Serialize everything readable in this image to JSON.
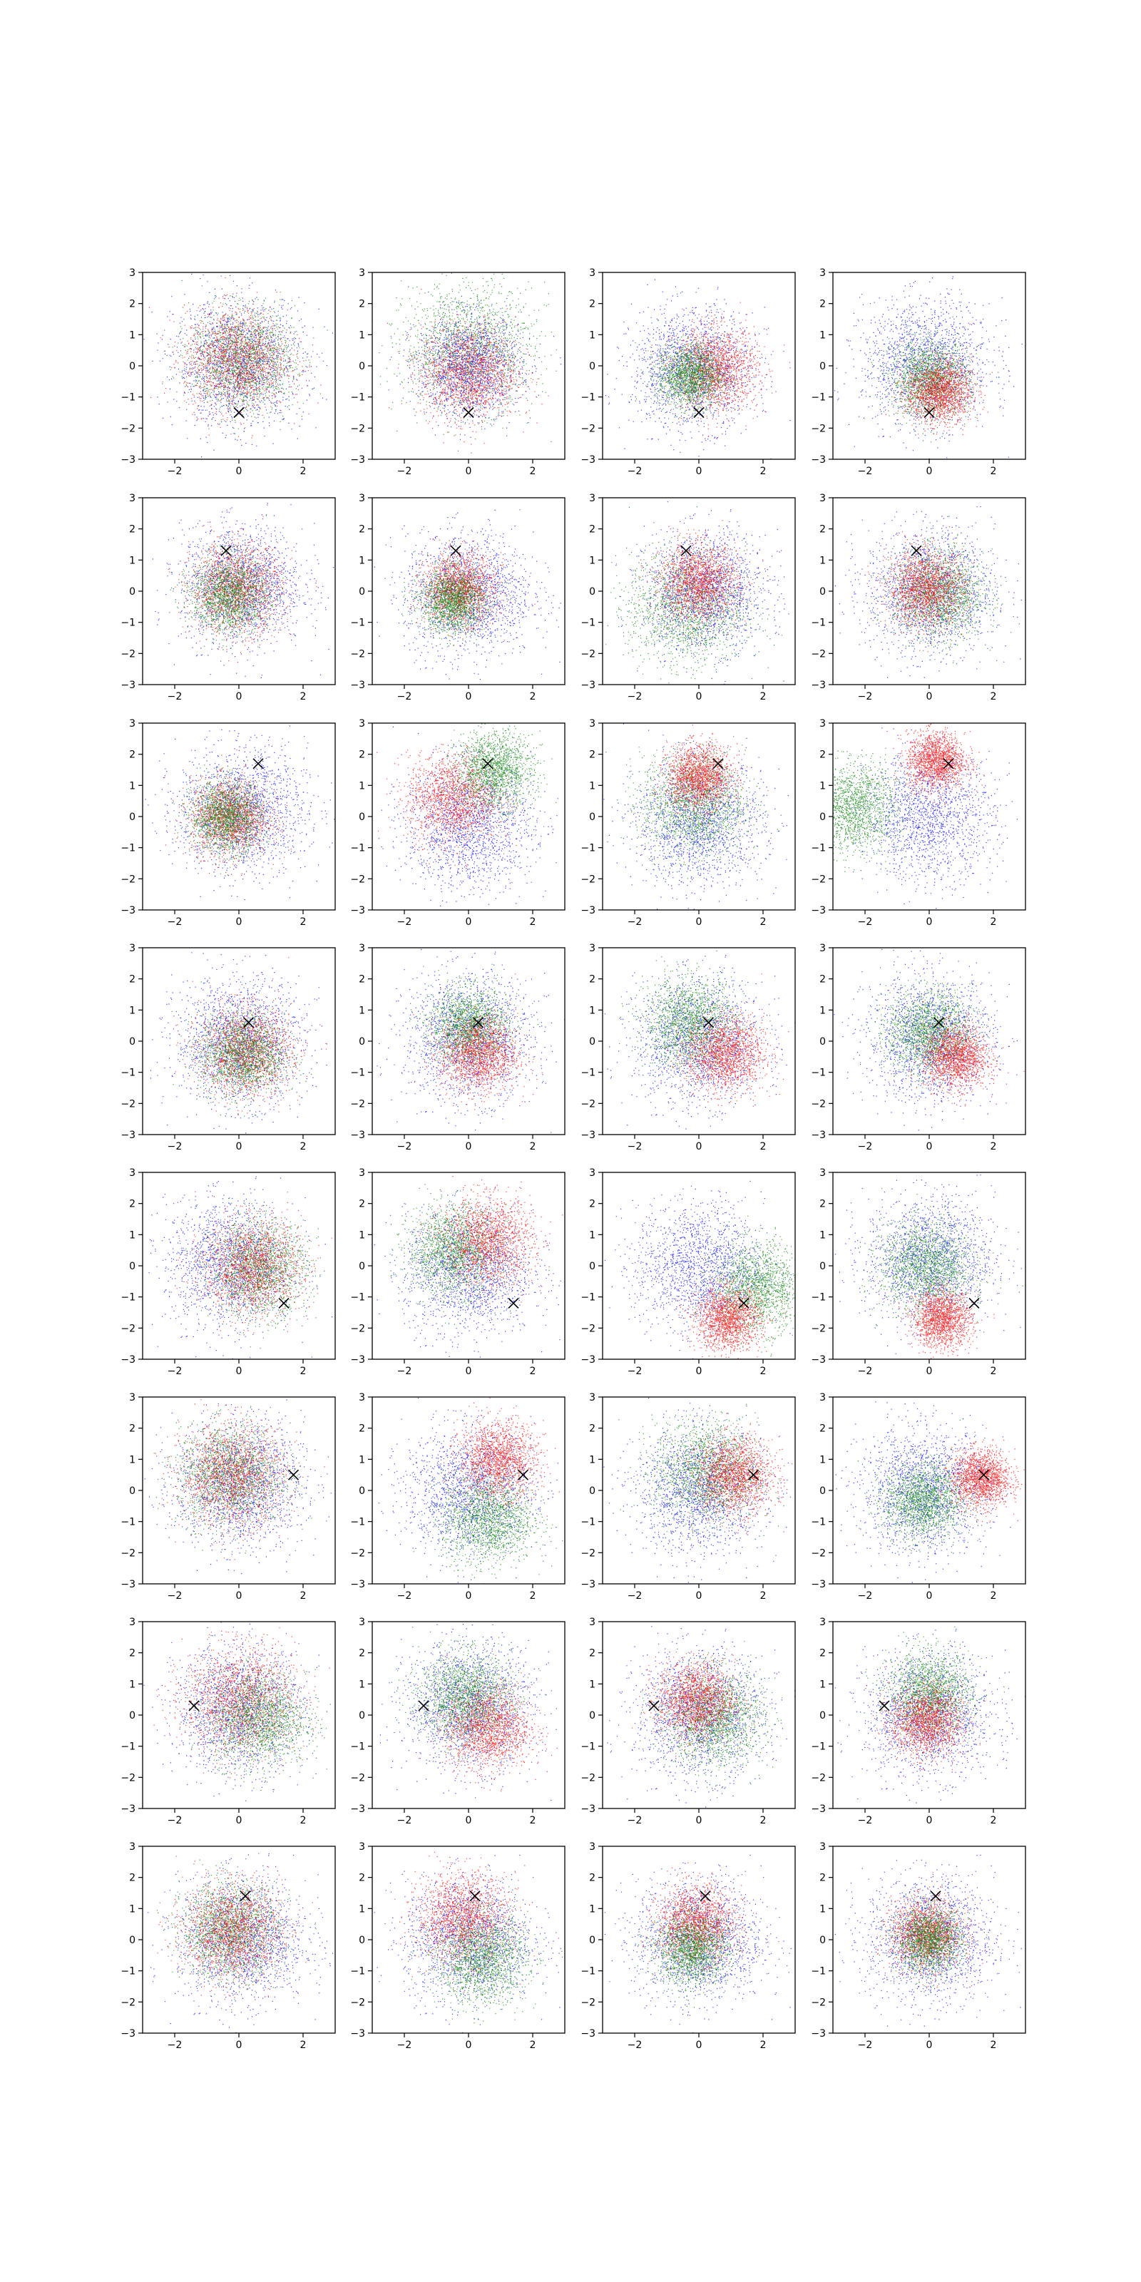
{
  "figure": {
    "rows": 8,
    "cols": 4,
    "x_ticks": [
      "−2",
      "0",
      "2"
    ],
    "y_ticks": [
      "3",
      "2",
      "1",
      "0",
      "−1",
      "−2",
      "−3"
    ],
    "colors": {
      "blue": "#0000ff",
      "green": "#008000",
      "red": "#ff0000",
      "marker": "#000000"
    }
  },
  "chart_data": {
    "type": "scatter",
    "grid": false,
    "xlim": [
      -3,
      3
    ],
    "ylim": [
      -3,
      3
    ],
    "x_tick_values": [
      -2,
      0,
      2
    ],
    "y_tick_values": [
      -3,
      -2,
      -1,
      0,
      1,
      2,
      3
    ],
    "series_colors": [
      "blue",
      "green",
      "red"
    ],
    "marker_symbol": "x",
    "panels": [
      {
        "row": 1,
        "col": 1,
        "marker": [
          0.0,
          -1.5
        ],
        "clusters": [
          {
            "color": "blue",
            "cx": 0.0,
            "cy": 0.1,
            "spread": 1.0
          },
          {
            "color": "green",
            "cx": 0.1,
            "cy": 0.2,
            "spread": 0.8
          },
          {
            "color": "red",
            "cx": -0.1,
            "cy": 0.2,
            "spread": 0.8
          }
        ]
      },
      {
        "row": 1,
        "col": 2,
        "marker": [
          0.0,
          -1.5
        ],
        "clusters": [
          {
            "color": "green",
            "cx": 0.0,
            "cy": 0.6,
            "spread": 1.0
          },
          {
            "color": "blue",
            "cx": 0.0,
            "cy": 0.0,
            "spread": 0.8
          },
          {
            "color": "red",
            "cx": 0.0,
            "cy": -0.2,
            "spread": 0.75
          }
        ]
      },
      {
        "row": 1,
        "col": 3,
        "marker": [
          0.0,
          -1.5
        ],
        "clusters": [
          {
            "color": "blue",
            "cx": -0.2,
            "cy": -0.1,
            "spread": 0.95
          },
          {
            "color": "red",
            "cx": 0.5,
            "cy": -0.1,
            "spread": 0.65
          },
          {
            "color": "green",
            "cx": -0.3,
            "cy": -0.3,
            "spread": 0.5
          }
        ]
      },
      {
        "row": 1,
        "col": 4,
        "marker": [
          0.0,
          -1.5
        ],
        "clusters": [
          {
            "color": "blue",
            "cx": -0.1,
            "cy": 0.1,
            "spread": 1.0
          },
          {
            "color": "green",
            "cx": 0.0,
            "cy": -0.4,
            "spread": 0.6
          },
          {
            "color": "red",
            "cx": 0.3,
            "cy": -0.8,
            "spread": 0.5
          }
        ]
      },
      {
        "row": 2,
        "col": 1,
        "marker": [
          -0.4,
          1.3
        ],
        "clusters": [
          {
            "color": "blue",
            "cx": 0.1,
            "cy": 0.2,
            "spread": 0.95
          },
          {
            "color": "red",
            "cx": -0.1,
            "cy": 0.1,
            "spread": 0.7
          },
          {
            "color": "green",
            "cx": -0.3,
            "cy": -0.1,
            "spread": 0.6
          }
        ]
      },
      {
        "row": 2,
        "col": 2,
        "marker": [
          -0.4,
          1.3
        ],
        "clusters": [
          {
            "color": "blue",
            "cx": 0.0,
            "cy": -0.1,
            "spread": 1.0
          },
          {
            "color": "red",
            "cx": -0.3,
            "cy": 0.1,
            "spread": 0.55
          },
          {
            "color": "green",
            "cx": -0.5,
            "cy": -0.3,
            "spread": 0.5
          }
        ]
      },
      {
        "row": 2,
        "col": 3,
        "marker": [
          -0.4,
          1.3
        ],
        "clusters": [
          {
            "color": "green",
            "cx": -0.4,
            "cy": -0.5,
            "spread": 0.9
          },
          {
            "color": "blue",
            "cx": 0.2,
            "cy": 0.0,
            "spread": 0.95
          },
          {
            "color": "red",
            "cx": 0.0,
            "cy": 0.3,
            "spread": 0.6
          }
        ]
      },
      {
        "row": 2,
        "col": 4,
        "marker": [
          -0.4,
          1.3
        ],
        "clusters": [
          {
            "color": "blue",
            "cx": 0.0,
            "cy": 0.0,
            "spread": 1.0
          },
          {
            "color": "green",
            "cx": 0.3,
            "cy": -0.1,
            "spread": 0.7
          },
          {
            "color": "red",
            "cx": -0.1,
            "cy": 0.1,
            "spread": 0.6
          }
        ]
      },
      {
        "row": 3,
        "col": 1,
        "marker": [
          0.6,
          1.7
        ],
        "clusters": [
          {
            "color": "blue",
            "cx": 0.1,
            "cy": 0.2,
            "spread": 1.0
          },
          {
            "color": "red",
            "cx": -0.3,
            "cy": 0.0,
            "spread": 0.6
          },
          {
            "color": "green",
            "cx": -0.4,
            "cy": 0.0,
            "spread": 0.55
          }
        ]
      },
      {
        "row": 3,
        "col": 2,
        "marker": [
          0.6,
          1.7
        ],
        "clusters": [
          {
            "color": "blue",
            "cx": 0.0,
            "cy": -0.3,
            "spread": 1.0
          },
          {
            "color": "red",
            "cx": -0.5,
            "cy": 0.6,
            "spread": 0.7
          },
          {
            "color": "green",
            "cx": 0.8,
            "cy": 1.5,
            "spread": 0.6
          }
        ]
      },
      {
        "row": 3,
        "col": 3,
        "marker": [
          0.6,
          1.7
        ],
        "clusters": [
          {
            "color": "blue",
            "cx": 0.0,
            "cy": -0.2,
            "spread": 1.0
          },
          {
            "color": "green",
            "cx": -0.2,
            "cy": 0.4,
            "spread": 0.8
          },
          {
            "color": "red",
            "cx": 0.0,
            "cy": 1.3,
            "spread": 0.5
          }
        ]
      },
      {
        "row": 4,
        "col": 4,
        "marker": [
          0.3,
          0.6
        ],
        "clusters": [
          {
            "color": "blue",
            "cx": 0.0,
            "cy": 0.1,
            "spread": 1.0
          },
          {
            "color": "green",
            "cx": 0.0,
            "cy": 0.3,
            "spread": 0.65
          },
          {
            "color": "red",
            "cx": 0.8,
            "cy": -0.5,
            "spread": 0.5
          }
        ]
      },
      {
        "row": 3,
        "col": 4,
        "marker": [
          0.6,
          1.7
        ],
        "clusters": [
          {
            "color": "blue",
            "cx": 0.0,
            "cy": 0.0,
            "spread": 1.0
          },
          {
            "color": "green",
            "cx": -2.4,
            "cy": 0.3,
            "spread": 0.7
          },
          {
            "color": "red",
            "cx": 0.2,
            "cy": 1.8,
            "spread": 0.45
          }
        ]
      },
      {
        "row": 4,
        "col": 1,
        "marker": [
          0.3,
          0.6
        ],
        "clusters": [
          {
            "color": "blue",
            "cx": 0.0,
            "cy": 0.0,
            "spread": 1.0
          },
          {
            "color": "red",
            "cx": 0.2,
            "cy": -0.3,
            "spread": 0.7
          },
          {
            "color": "green",
            "cx": 0.1,
            "cy": -0.4,
            "spread": 0.65
          }
        ]
      },
      {
        "row": 4,
        "col": 2,
        "marker": [
          0.3,
          0.6
        ],
        "clusters": [
          {
            "color": "blue",
            "cx": 0.0,
            "cy": 0.1,
            "spread": 1.0
          },
          {
            "color": "green",
            "cx": 0.0,
            "cy": 0.5,
            "spread": 0.6
          },
          {
            "color": "red",
            "cx": 0.3,
            "cy": -0.4,
            "spread": 0.6
          }
        ]
      },
      {
        "row": 4,
        "col": 3,
        "marker": [
          0.3,
          0.6
        ],
        "clusters": [
          {
            "color": "blue",
            "cx": 0.0,
            "cy": 0.0,
            "spread": 1.0
          },
          {
            "color": "green",
            "cx": -0.3,
            "cy": 0.6,
            "spread": 0.7
          },
          {
            "color": "red",
            "cx": 0.8,
            "cy": -0.4,
            "spread": 0.6
          }
        ]
      },
      {
        "row": 5,
        "col": 1,
        "marker": [
          1.4,
          -1.2
        ],
        "clusters": [
          {
            "color": "blue",
            "cx": -0.3,
            "cy": 0.1,
            "spread": 1.0
          },
          {
            "color": "green",
            "cx": 0.6,
            "cy": -0.1,
            "spread": 0.75
          },
          {
            "color": "red",
            "cx": 0.4,
            "cy": 0.0,
            "spread": 0.75
          }
        ]
      },
      {
        "row": 5,
        "col": 2,
        "marker": [
          1.4,
          -1.2
        ],
        "clusters": [
          {
            "color": "blue",
            "cx": 0.0,
            "cy": -0.2,
            "spread": 1.0
          },
          {
            "color": "green",
            "cx": -0.5,
            "cy": 0.5,
            "spread": 0.7
          },
          {
            "color": "red",
            "cx": 0.6,
            "cy": 0.8,
            "spread": 0.7
          }
        ]
      },
      {
        "row": 5,
        "col": 3,
        "marker": [
          1.4,
          -1.2
        ],
        "clusters": [
          {
            "color": "blue",
            "cx": 0.0,
            "cy": 0.0,
            "spread": 1.0
          },
          {
            "color": "green",
            "cx": 1.8,
            "cy": -0.7,
            "spread": 0.7
          },
          {
            "color": "red",
            "cx": 0.9,
            "cy": -1.7,
            "spread": 0.5
          }
        ]
      },
      {
        "row": 5,
        "col": 4,
        "marker": [
          1.4,
          -1.2
        ],
        "clusters": [
          {
            "color": "blue",
            "cx": 0.0,
            "cy": 0.2,
            "spread": 1.0
          },
          {
            "color": "green",
            "cx": -0.1,
            "cy": 0.0,
            "spread": 0.7
          },
          {
            "color": "red",
            "cx": 0.4,
            "cy": -1.7,
            "spread": 0.45
          }
        ]
      },
      {
        "row": 6,
        "col": 1,
        "marker": [
          1.7,
          0.5
        ],
        "clusters": [
          {
            "color": "blue",
            "cx": 0.0,
            "cy": 0.2,
            "spread": 1.0
          },
          {
            "color": "green",
            "cx": -0.3,
            "cy": 0.5,
            "spread": 0.8
          },
          {
            "color": "red",
            "cx": -0.2,
            "cy": 0.5,
            "spread": 0.8
          }
        ]
      },
      {
        "row": 6,
        "col": 2,
        "marker": [
          1.7,
          0.5
        ],
        "clusters": [
          {
            "color": "blue",
            "cx": 0.0,
            "cy": 0.0,
            "spread": 1.0
          },
          {
            "color": "green",
            "cx": 0.6,
            "cy": -0.9,
            "spread": 0.7
          },
          {
            "color": "red",
            "cx": 0.9,
            "cy": 1.0,
            "spread": 0.6
          }
        ]
      },
      {
        "row": 6,
        "col": 3,
        "marker": [
          1.7,
          0.5
        ],
        "clusters": [
          {
            "color": "blue",
            "cx": 0.0,
            "cy": 0.0,
            "spread": 1.0
          },
          {
            "color": "green",
            "cx": 0.2,
            "cy": 0.6,
            "spread": 0.8
          },
          {
            "color": "red",
            "cx": 1.1,
            "cy": 0.5,
            "spread": 0.6
          }
        ]
      },
      {
        "row": 6,
        "col": 4,
        "marker": [
          1.7,
          0.5
        ],
        "clusters": [
          {
            "color": "blue",
            "cx": -0.2,
            "cy": 0.0,
            "spread": 1.0
          },
          {
            "color": "green",
            "cx": -0.2,
            "cy": -0.3,
            "spread": 0.6
          },
          {
            "color": "red",
            "cx": 1.6,
            "cy": 0.4,
            "spread": 0.45
          }
        ]
      },
      {
        "row": 7,
        "col": 1,
        "marker": [
          -1.4,
          0.3
        ],
        "clusters": [
          {
            "color": "blue",
            "cx": 0.0,
            "cy": 0.2,
            "spread": 1.0
          },
          {
            "color": "red",
            "cx": 0.0,
            "cy": 0.5,
            "spread": 0.85
          },
          {
            "color": "green",
            "cx": 0.6,
            "cy": -0.1,
            "spread": 0.75
          }
        ]
      },
      {
        "row": 7,
        "col": 2,
        "marker": [
          -1.4,
          0.3
        ],
        "clusters": [
          {
            "color": "blue",
            "cx": 0.0,
            "cy": 0.3,
            "spread": 1.0
          },
          {
            "color": "green",
            "cx": -0.1,
            "cy": 0.6,
            "spread": 0.7
          },
          {
            "color": "red",
            "cx": 0.6,
            "cy": -0.4,
            "spread": 0.65
          }
        ]
      },
      {
        "row": 7,
        "col": 3,
        "marker": [
          -1.4,
          0.3
        ],
        "clusters": [
          {
            "color": "blue",
            "cx": 0.0,
            "cy": 0.0,
            "spread": 1.0
          },
          {
            "color": "green",
            "cx": 0.5,
            "cy": -0.1,
            "spread": 0.75
          },
          {
            "color": "red",
            "cx": -0.1,
            "cy": 0.5,
            "spread": 0.6
          }
        ]
      },
      {
        "row": 7,
        "col": 4,
        "marker": [
          -1.4,
          0.3
        ],
        "clusters": [
          {
            "color": "blue",
            "cx": 0.0,
            "cy": 0.0,
            "spread": 1.0
          },
          {
            "color": "green",
            "cx": 0.0,
            "cy": 0.7,
            "spread": 0.65
          },
          {
            "color": "red",
            "cx": -0.1,
            "cy": -0.2,
            "spread": 0.55
          }
        ]
      },
      {
        "row": 8,
        "col": 1,
        "marker": [
          0.2,
          1.4
        ],
        "clusters": [
          {
            "color": "blue",
            "cx": 0.1,
            "cy": 0.0,
            "spread": 1.0
          },
          {
            "color": "green",
            "cx": -0.3,
            "cy": 0.3,
            "spread": 0.75
          },
          {
            "color": "red",
            "cx": -0.2,
            "cy": 0.3,
            "spread": 0.75
          }
        ]
      },
      {
        "row": 8,
        "col": 2,
        "marker": [
          0.2,
          1.4
        ],
        "clusters": [
          {
            "color": "blue",
            "cx": 0.0,
            "cy": 0.0,
            "spread": 1.0
          },
          {
            "color": "red",
            "cx": -0.2,
            "cy": 0.7,
            "spread": 0.7
          },
          {
            "color": "green",
            "cx": 0.4,
            "cy": -0.6,
            "spread": 0.7
          }
        ]
      },
      {
        "row": 8,
        "col": 3,
        "marker": [
          0.2,
          1.4
        ],
        "clusters": [
          {
            "color": "blue",
            "cx": 0.0,
            "cy": 0.0,
            "spread": 1.0
          },
          {
            "color": "red",
            "cx": -0.1,
            "cy": 0.5,
            "spread": 0.6
          },
          {
            "color": "green",
            "cx": -0.2,
            "cy": -0.3,
            "spread": 0.55
          }
        ]
      },
      {
        "row": 8,
        "col": 4,
        "marker": [
          0.2,
          1.4
        ],
        "clusters": [
          {
            "color": "blue",
            "cx": 0.0,
            "cy": 0.0,
            "spread": 1.0
          },
          {
            "color": "red",
            "cx": -0.1,
            "cy": 0.2,
            "spread": 0.55
          },
          {
            "color": "green",
            "cx": 0.0,
            "cy": 0.0,
            "spread": 0.5
          }
        ]
      }
    ]
  }
}
